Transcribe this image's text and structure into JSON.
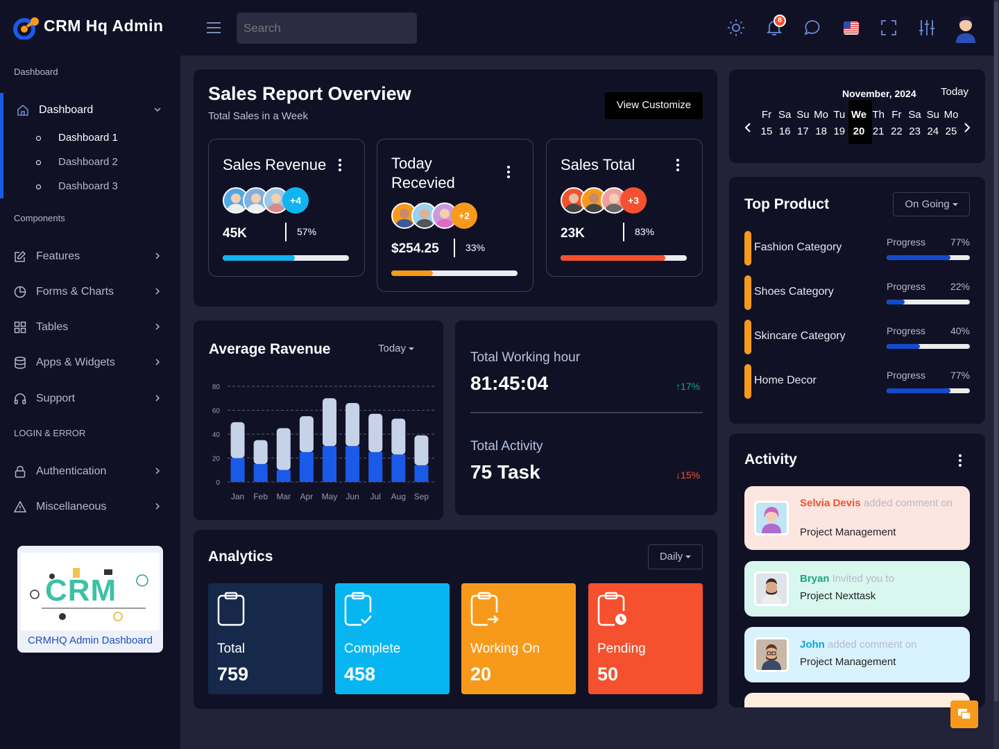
{
  "app": {
    "title": "CRM Hq Admin"
  },
  "header": {
    "search_placeholder": "Search",
    "notification_count": "8"
  },
  "sidebar": {
    "sections": {
      "dashboard": "Dashboard",
      "components": "Components",
      "login_error": "LOGIN & ERROR"
    },
    "dashboard": {
      "label": "Dashboard",
      "subitems": [
        "Dashboard 1",
        "Dashboard 2",
        "Dashboard 3"
      ]
    },
    "items": [
      "Features",
      "Forms & Charts",
      "Tables",
      "Apps & Widgets",
      "Support"
    ],
    "auth_items": [
      "Authentication",
      "Miscellaneous"
    ],
    "promo": {
      "title": "CRMHQ Admin Dashboard",
      "logo_text": "CRM"
    }
  },
  "sales_report": {
    "title": "Sales Report Overview",
    "subtitle": "Total Sales in a Week",
    "button": "View Customize",
    "cards": [
      {
        "title": "Sales Revenue",
        "extra": "+4",
        "value": "45K",
        "percent": "57%",
        "progress": 0.57,
        "color": "#10b4f0"
      },
      {
        "title": "Today Recevied",
        "extra": "+2",
        "value": "$254.25",
        "percent": "33%",
        "progress": 0.33,
        "color": "#f79a1c"
      },
      {
        "title": "Sales Total",
        "extra": "+3",
        "value": "23K",
        "percent": "83%",
        "progress": 0.83,
        "color": "#f5512e"
      }
    ]
  },
  "avg_revenue": {
    "title": "Average Ravenue",
    "filter": "Today"
  },
  "chart_data": {
    "type": "bar",
    "title": "Average Ravenue",
    "categories": [
      "Jan",
      "Feb",
      "Mar",
      "Apr",
      "May",
      "Jun",
      "Jul",
      "Aug",
      "Sep"
    ],
    "series": [
      {
        "values": [
          20,
          15,
          10,
          25,
          30,
          30,
          25,
          23,
          14
        ],
        "color": "#1a5ae8"
      },
      {
        "values": [
          30,
          20,
          35,
          30,
          40,
          36,
          32,
          30,
          25
        ],
        "color": "#c5d2e8"
      }
    ],
    "stacked": true,
    "yticks": [
      0,
      20,
      40,
      60,
      80
    ],
    "ylim": [
      0,
      80
    ],
    "grid": true
  },
  "working": {
    "hour_label": "Total Working hour",
    "hour_value": "81:45:04",
    "hour_change": "17%",
    "activity_label": "Total Activity",
    "activity_value": "75 Task",
    "activity_change": "15%"
  },
  "analytics": {
    "title": "Analytics",
    "filter": "Daily",
    "tiles": [
      {
        "label": "Total",
        "value": "759",
        "color": "#16294a",
        "icon": "clipboard-icon"
      },
      {
        "label": "Complete",
        "value": "458",
        "color": "#07b6f0",
        "icon": "clipboard-check-icon"
      },
      {
        "label": "Working On",
        "value": "20",
        "color": "#f79a1c",
        "icon": "clipboard-arrow-icon"
      },
      {
        "label": "Pending",
        "value": "50",
        "color": "#f5512e",
        "icon": "clipboard-clock-icon"
      }
    ]
  },
  "calendar": {
    "month": "November, 2024",
    "today_label": "Today",
    "days": [
      {
        "d": "Fr",
        "n": "15"
      },
      {
        "d": "Sa",
        "n": "16"
      },
      {
        "d": "Su",
        "n": "17"
      },
      {
        "d": "Mo",
        "n": "18"
      },
      {
        "d": "Tu",
        "n": "19"
      },
      {
        "d": "We",
        "n": "20",
        "selected": true
      },
      {
        "d": "Th",
        "n": "21"
      },
      {
        "d": "Fr",
        "n": "22"
      },
      {
        "d": "Sa",
        "n": "23"
      },
      {
        "d": "Su",
        "n": "24"
      },
      {
        "d": "Mo",
        "n": "25"
      }
    ]
  },
  "top_product": {
    "title": "Top Product",
    "filter": "On Going",
    "progress_label": "Progress",
    "items": [
      {
        "name": "Fashion Category",
        "percent": "77%",
        "value": 0.77
      },
      {
        "name": "Shoes Category",
        "percent": "22%",
        "value": 0.22
      },
      {
        "name": "Skincare Category",
        "percent": "40%",
        "value": 0.4
      },
      {
        "name": "Home Decor",
        "percent": "77%",
        "value": 0.77
      }
    ]
  },
  "activity": {
    "title": "Activity",
    "items": [
      {
        "name": "Selvia Devis",
        "action": "added comment on",
        "target": "Project Management",
        "bg": "#fde5e0",
        "name_color": "#f5512e"
      },
      {
        "name": "Bryan",
        "action": "Invited you to",
        "target": "Project Nexttask",
        "bg": "#d8f7ee",
        "name_color": "#16a97e"
      },
      {
        "name": "John",
        "action": "added comment on",
        "target": "Project Management",
        "bg": "#d9f3fd",
        "name_color": "#07a6e0"
      }
    ]
  }
}
